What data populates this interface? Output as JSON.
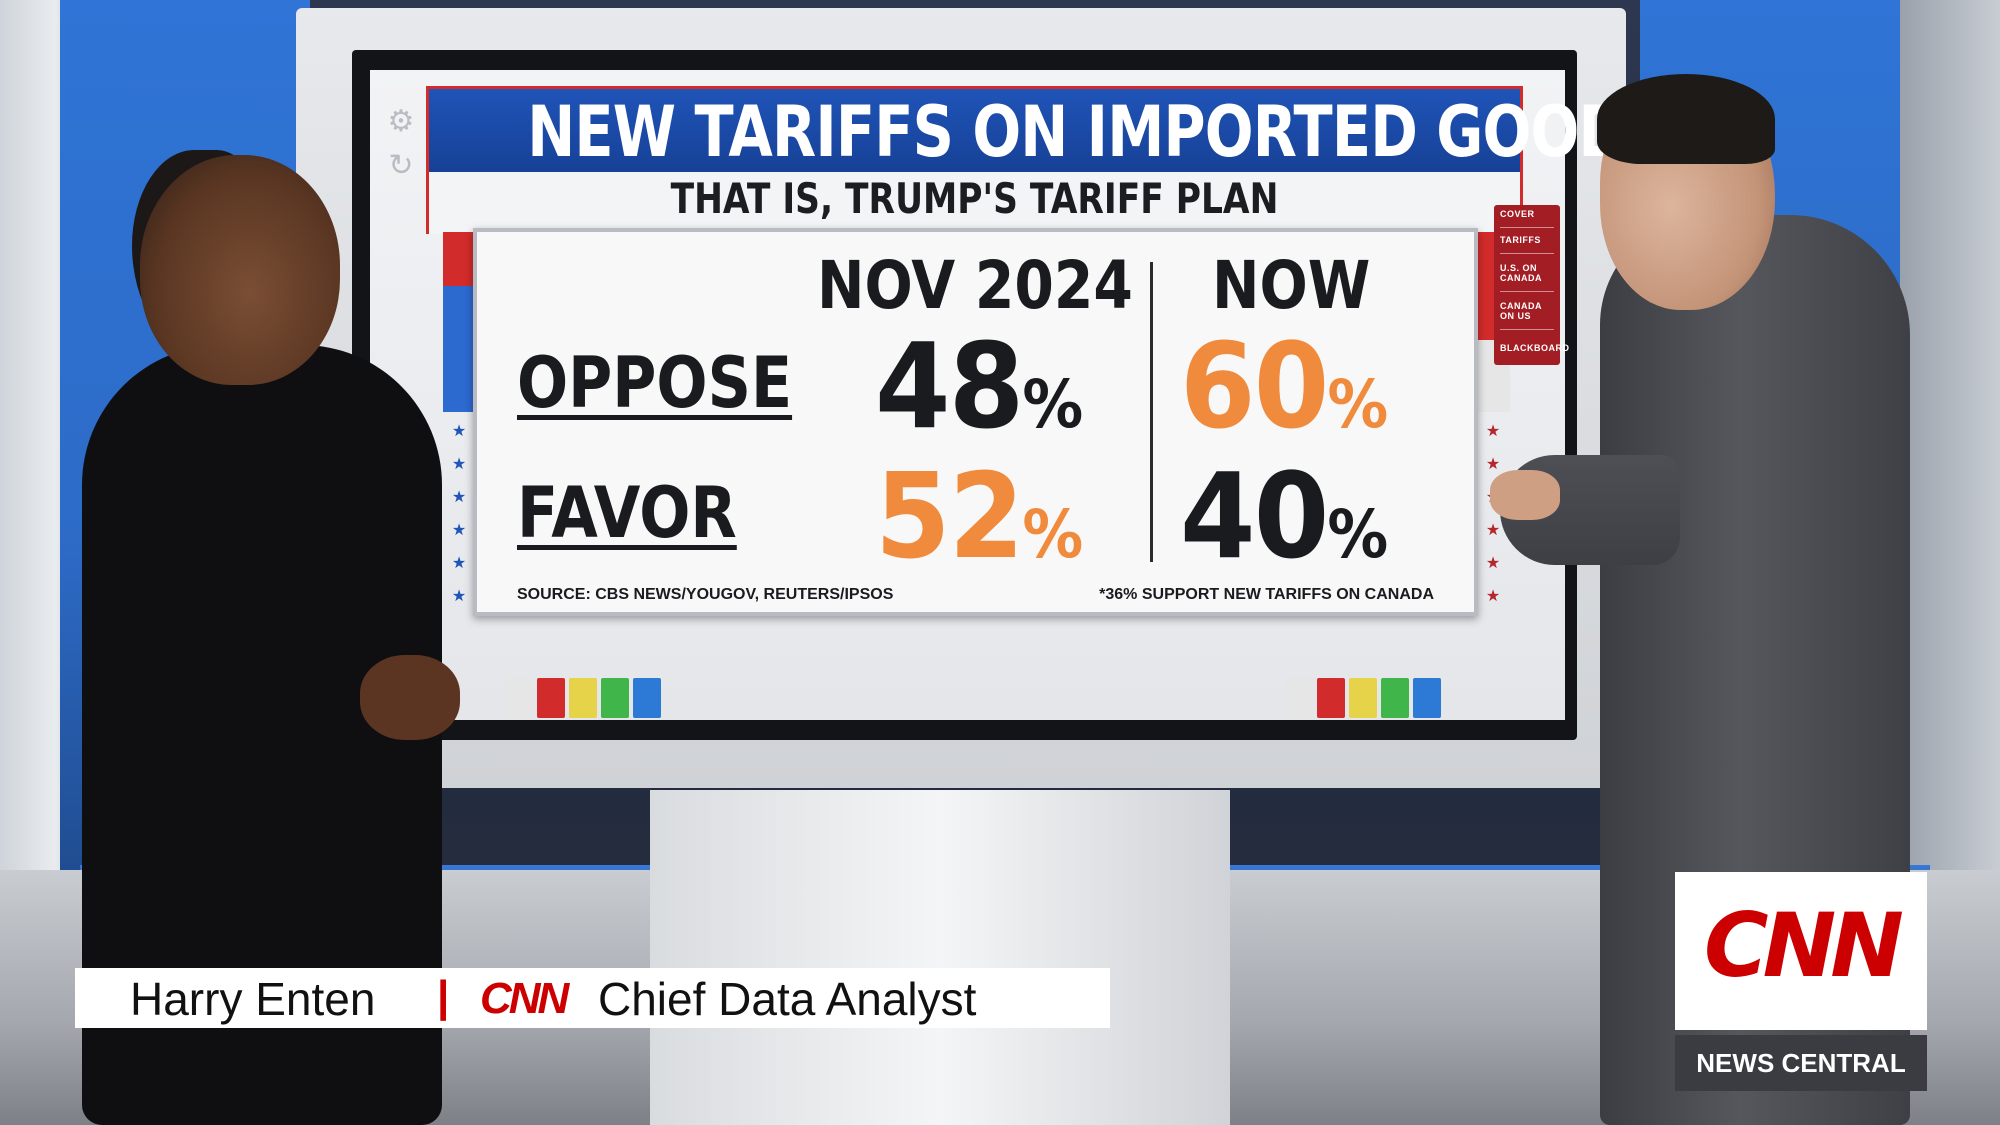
{
  "board": {
    "title": "NEW TARIFFS ON IMPORTED GOODS",
    "subtitle": "THAT IS, TRUMP'S TARIFF PLAN",
    "columns": [
      "NOV 2024",
      "NOW"
    ],
    "rows": [
      {
        "label": "OPPOSE",
        "values": [
          "48",
          "60"
        ],
        "colors": [
          "#1a1b1f",
          "#f08a3c"
        ]
      },
      {
        "label": "FAVOR",
        "values": [
          "52",
          "40"
        ],
        "colors": [
          "#f08a3c",
          "#1a1b1f"
        ]
      }
    ],
    "percent_sign": "%",
    "source": "SOURCE: CBS NEWS/YOUGOV, REUTERS/IPSOS",
    "note": "*36% SUPPORT NEW TARIFFS ON CANADA",
    "nav": [
      "COVER",
      "TARIFFS",
      "U.S. ON CANADA",
      "CANADA ON US",
      "BLACKBOARD"
    ],
    "palette_colors": [
      "#e6e6e6",
      "#d22b2b",
      "#e6d34a",
      "#3fb54a",
      "#2d79d6"
    ],
    "accent_red": "#d22b2b",
    "accent_blue": "#1f54b8",
    "accent_orange": "#f08a3c"
  },
  "lower_third": {
    "name": "Harry Enten",
    "separator": "|",
    "network": "CNN",
    "title": "Chief Data Analyst"
  },
  "bug": {
    "logo": "CNN",
    "show": "NEWS CENTRAL"
  }
}
